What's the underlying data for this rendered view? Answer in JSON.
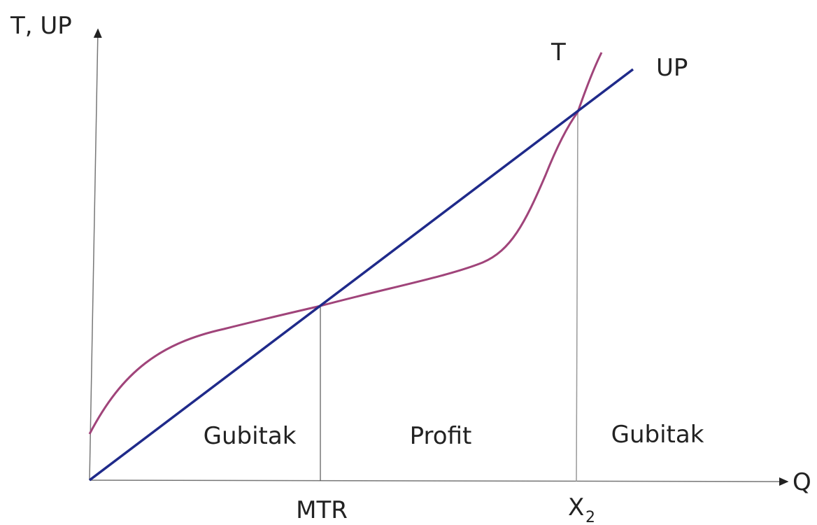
{
  "diagram": {
    "y_axis_label": "T, UP",
    "x_axis_label": "Q",
    "curve_t_label": "T",
    "curve_up_label": "UP",
    "regions": [
      "Gubitak",
      "Profit",
      "Gubitak"
    ],
    "points": [
      {
        "text": "MTR"
      },
      {
        "text": "X",
        "subscript": "2"
      }
    ]
  }
}
